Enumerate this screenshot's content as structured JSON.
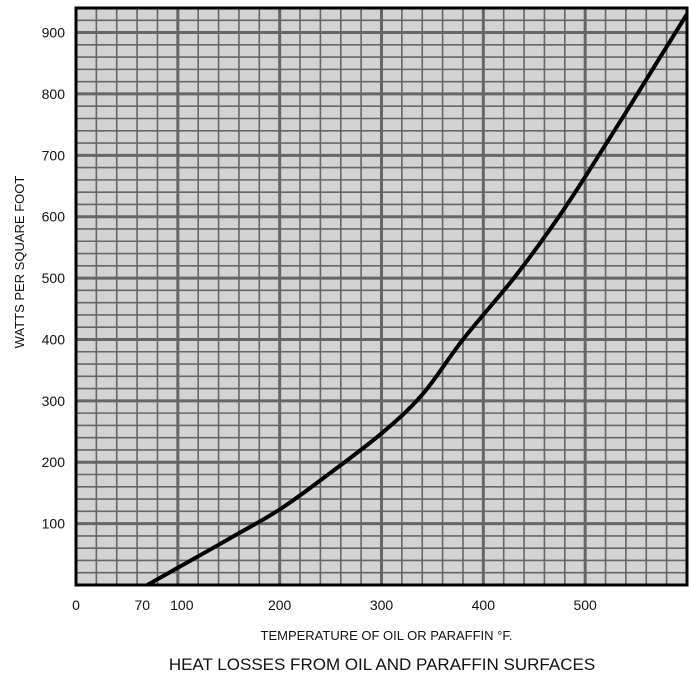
{
  "chart_data": {
    "type": "line",
    "title": "HEAT LOSSES FROM OIL AND PARAFFIN SURFACES",
    "xlabel": "TEMPERATURE OF OIL OR PARAFFIN °F.",
    "ylabel": "WATTS PER SQUARE FOOT",
    "xlim": [
      0,
      600
    ],
    "ylim": [
      0,
      940
    ],
    "x_ticks": [
      {
        "value": 0,
        "label": "0"
      },
      {
        "value": 70,
        "label": "70"
      },
      {
        "value": 100,
        "label": "100"
      },
      {
        "value": 200,
        "label": "200"
      },
      {
        "value": 300,
        "label": "300"
      },
      {
        "value": 400,
        "label": "400"
      },
      {
        "value": 500,
        "label": "500"
      }
    ],
    "y_ticks": [
      {
        "value": 100,
        "label": "100"
      },
      {
        "value": 200,
        "label": "200"
      },
      {
        "value": 300,
        "label": "300"
      },
      {
        "value": 400,
        "label": "400"
      },
      {
        "value": 500,
        "label": "500"
      },
      {
        "value": 600,
        "label": "600"
      },
      {
        "value": 700,
        "label": "700"
      },
      {
        "value": 800,
        "label": "800"
      },
      {
        "value": 900,
        "label": "900"
      }
    ],
    "grid": true,
    "series": [
      {
        "x": [
          70,
          100,
          150,
          200,
          250,
          300,
          340,
          380,
          430,
          470,
          500,
          540,
          570,
          600
        ],
        "y": [
          0,
          28,
          75,
          123,
          183,
          247,
          310,
          400,
          500,
          590,
          665,
          770,
          850,
          930
        ]
      }
    ]
  },
  "colors": {
    "plot_background": "#d3d3d3",
    "grid": "#666666",
    "line": "#000000"
  }
}
